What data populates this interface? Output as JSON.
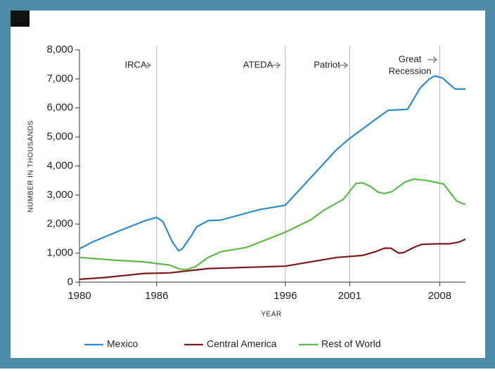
{
  "chart_data": {
    "type": "line",
    "y_label": "NUMBER IN THOUSANDS",
    "x_label": "YEAR",
    "xlim": [
      1980,
      2010
    ],
    "xticks": [
      1980,
      1986,
      1996,
      2001,
      2008
    ],
    "ylim": [
      0,
      8000
    ],
    "yticks": [
      0,
      {
        "value": 1000,
        "label": "1,000"
      },
      {
        "value": 2000,
        "label": "2,000"
      },
      {
        "value": 3000,
        "label": "3,000"
      },
      {
        "value": 4000,
        "label": "4,000"
      },
      {
        "value": 5000,
        "label": "5,000"
      },
      {
        "value": 6000,
        "label": "6,000"
      },
      {
        "value": 7000,
        "label": "7,000"
      },
      {
        "value": 8000,
        "label": "8,000"
      }
    ],
    "annotations": [
      [
        "IRCA"
      ],
      [
        "ATEDA"
      ],
      [
        "Patriot"
      ],
      [
        "Great",
        "Recession"
      ]
    ],
    "series": [
      {
        "name": "Mexico",
        "color": "#2b8ccd",
        "x": [
          1980,
          1981,
          1983,
          1985,
          1986,
          1986.5,
          1987.2,
          1987.7,
          1988,
          1988.7,
          1989.1,
          1990,
          1991,
          1994,
          1996,
          2000,
          2001,
          2003,
          2004,
          2005.5,
          2006.5,
          2007.2,
          2007.6,
          2008.2,
          2009.2,
          2010
        ],
        "values": [
          1150,
          1380,
          1750,
          2100,
          2230,
          2080,
          1400,
          1080,
          1150,
          1600,
          1900,
          2120,
          2140,
          2500,
          2650,
          4570,
          4950,
          5600,
          5920,
          5950,
          6700,
          7000,
          7100,
          7030,
          6650,
          6650
        ]
      },
      {
        "name": "Central America",
        "color": "#7a1a1a",
        "x": [
          1980,
          1982,
          1985,
          1987,
          1990,
          1996,
          2000,
          2002,
          2003,
          2003.7,
          2004.2,
          2004.8,
          2005.2,
          2006,
          2006.6,
          2007.8,
          2008.7,
          2009.5,
          2010
        ],
        "values": [
          100,
          160,
          300,
          320,
          470,
          550,
          850,
          920,
          1050,
          1170,
          1170,
          1000,
          1020,
          1200,
          1300,
          1320,
          1320,
          1380,
          1480
        ]
      },
      {
        "name": "Rest of World",
        "color": "#5cba46",
        "x": [
          1980,
          1983,
          1985,
          1986,
          1987,
          1987.8,
          1988.3,
          1989,
          1990,
          1991,
          1993,
          1996,
          1998,
          1999,
          2000.5,
          2001.5,
          2002,
          2002.6,
          2003.2,
          2003.7,
          2004.3,
          2005.3,
          2006,
          2007,
          2008.3,
          2008.7,
          2009.3,
          2009.8,
          2010
        ],
        "values": [
          850,
          750,
          700,
          640,
          590,
          450,
          430,
          530,
          850,
          1050,
          1200,
          1720,
          2150,
          2480,
          2850,
          3400,
          3420,
          3300,
          3100,
          3050,
          3120,
          3450,
          3550,
          3500,
          3380,
          3150,
          2800,
          2700,
          2680
        ]
      }
    ]
  }
}
